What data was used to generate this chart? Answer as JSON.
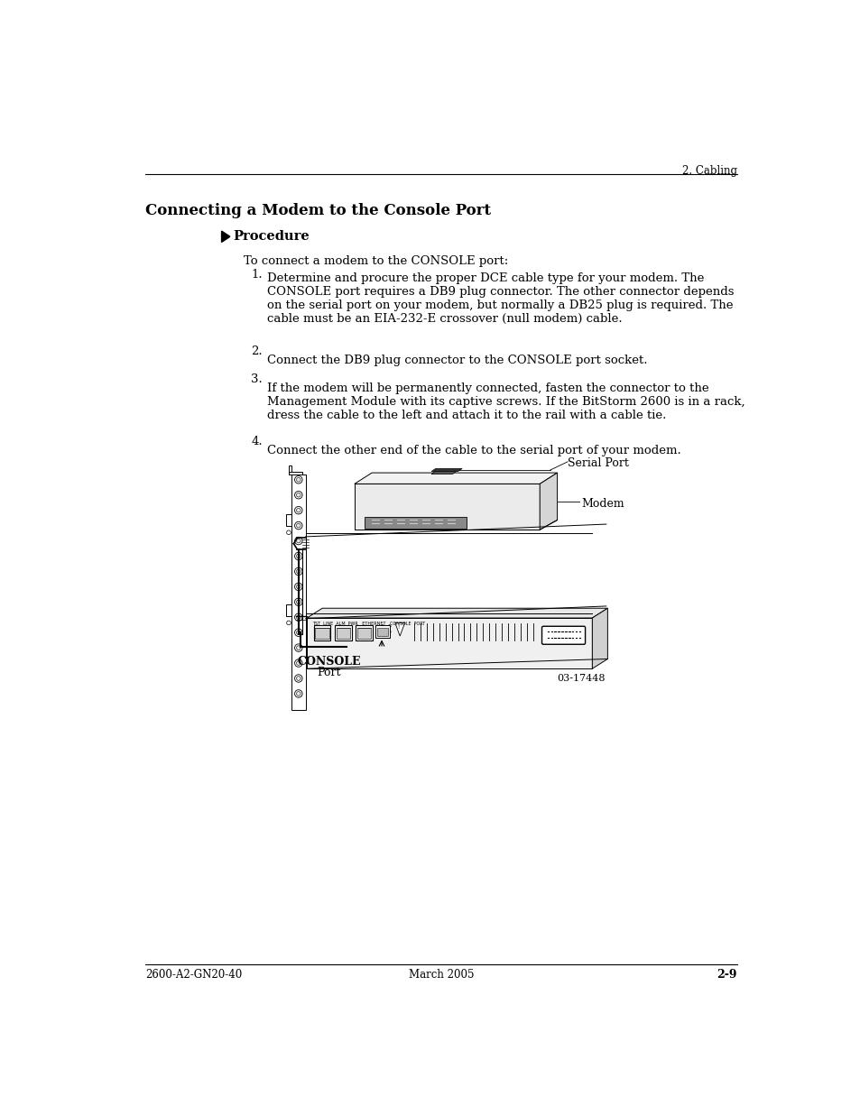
{
  "page_header_right": "2. Cabling",
  "section_title": "Connecting a Modem to the Console Port",
  "procedure_label": "Procedure",
  "intro_text": "To connect a modem to the CONSOLE port:",
  "steps": [
    "Determine and procure the proper DCE cable type for your modem. The\nCONSOLE port requires a DB9 plug connector. The other connector depends\non the serial port on your modem, but normally a DB25 plug is required. The\ncable must be an EIA-232-E crossover (null modem) cable.",
    "Connect the DB9 plug connector to the CONSOLE port socket.",
    "If the modem will be permanently connected, fasten the connector to the\nManagement Module with its captive screws. If the BitStorm 2600 is in a rack,\ndress the cable to the left and attach it to the rail with a cable tie.",
    "Connect the other end of the cable to the serial port of your modem."
  ],
  "footer_left": "2600-A2-GN20-40",
  "footer_center": "March 2005",
  "footer_right": "2-9",
  "diagram_caption_serial": "Serial Port",
  "diagram_caption_modem": "Modem",
  "diagram_caption_console": "CONSOLE\nPort",
  "diagram_caption_fignum": "03-17448",
  "bg_color": "#ffffff",
  "text_color": "#000000",
  "line_color": "#000000"
}
